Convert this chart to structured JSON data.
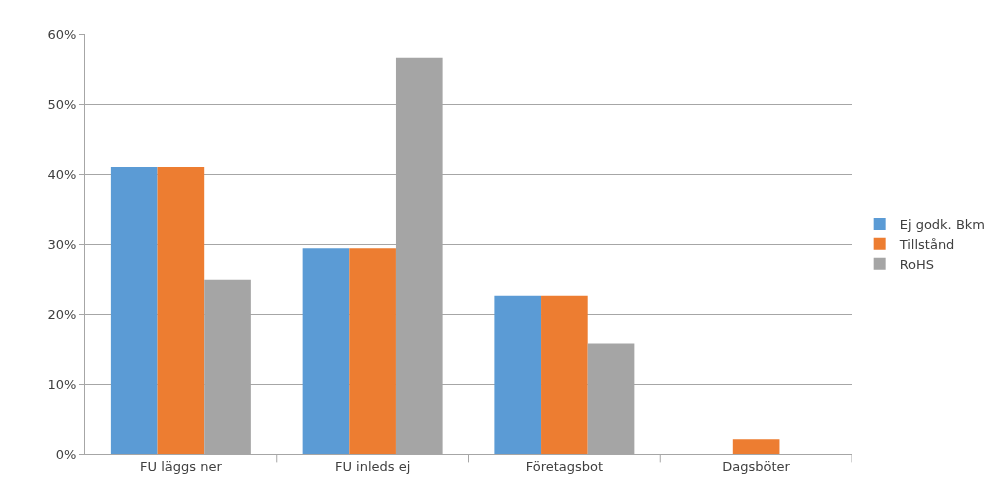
{
  "chart_data": {
    "type": "bar",
    "categories": [
      "FU läggs ner",
      "FU inleds ej",
      "Företagsbot",
      "Dagsböter"
    ],
    "series": [
      {
        "name": "Ej godk. Bkm",
        "color": "#5b9bd5",
        "values": [
          41,
          29.4,
          22.6,
          0
        ]
      },
      {
        "name": "Tillstånd",
        "color": "#ed7d31",
        "values": [
          41,
          29.4,
          22.6,
          2.1
        ]
      },
      {
        "name": "RoHS",
        "color": "#a5a5a5",
        "values": [
          24.9,
          56.6,
          15.8,
          0
        ]
      }
    ],
    "ylim": [
      0,
      60
    ],
    "yticks": [
      {
        "value": 0,
        "label": "0%"
      },
      {
        "value": 10,
        "label": "10%"
      },
      {
        "value": 20,
        "label": "20%"
      },
      {
        "value": 30,
        "label": "30%"
      },
      {
        "value": 40,
        "label": "40%"
      },
      {
        "value": 50,
        "label": "50%"
      },
      {
        "value": 60,
        "label": "60%"
      }
    ],
    "grid": "y",
    "legend": "right"
  }
}
